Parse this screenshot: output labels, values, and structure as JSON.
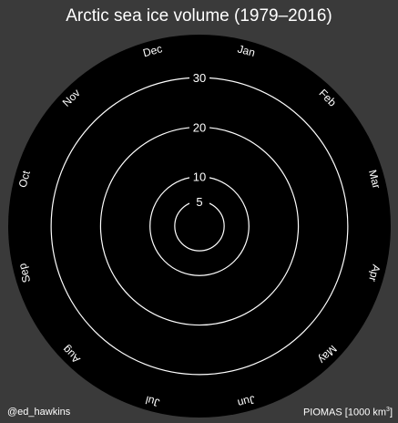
{
  "chart_data": {
    "type": "line",
    "subtype": "polar-spiral",
    "title": "Arctic sea ice volume (1979–2016)",
    "months": [
      "Jan",
      "Feb",
      "Mar",
      "Apr",
      "May",
      "Jun",
      "Jul",
      "Aug",
      "Sep",
      "Oct",
      "Nov",
      "Dec"
    ],
    "radial_ticks": [
      5,
      10,
      20,
      30
    ],
    "rlim": [
      0,
      35
    ],
    "series": [],
    "grid": true,
    "credit": "@ed_hawkins",
    "source": "PIOMAS [1000 km",
    "source_superscript": "3",
    "source_suffix": "]"
  },
  "colors": {
    "background": "#3a3a3a",
    "plot_disc": "#000000",
    "grid_rings": "#ffffff",
    "text": "#ffffff"
  }
}
